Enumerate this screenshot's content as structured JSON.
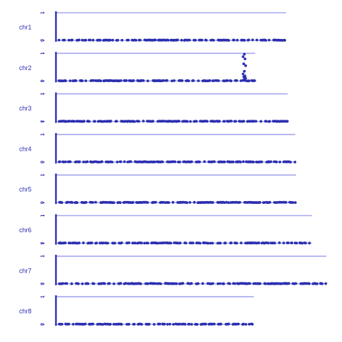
{
  "chart_data": {
    "type": "scatter",
    "ylim": [
      0,
      1
    ],
    "yticks": [
      "0",
      "1"
    ],
    "color": "#2b2fb0",
    "line_color": "#a6a8ee",
    "panels": [
      {
        "label": "chr1",
        "xmax": 0.85
      },
      {
        "label": "chr2",
        "xmax": 0.735,
        "peak": {
          "x": 0.695,
          "y": [
            0.02,
            0.06,
            0.1,
            0.15,
            0.18,
            0.25,
            0.35,
            0.55,
            0.62,
            0.8,
            0.88,
            0.97
          ]
        }
      },
      {
        "label": "chr3",
        "xmax": 0.856
      },
      {
        "label": "chr4",
        "xmax": 0.884
      },
      {
        "label": "chr5",
        "xmax": 0.887
      },
      {
        "label": "chr6",
        "xmax": 0.946
      },
      {
        "label": "chr7",
        "xmax": 1.0
      },
      {
        "label": "chr8",
        "xmax": 0.73
      }
    ]
  }
}
